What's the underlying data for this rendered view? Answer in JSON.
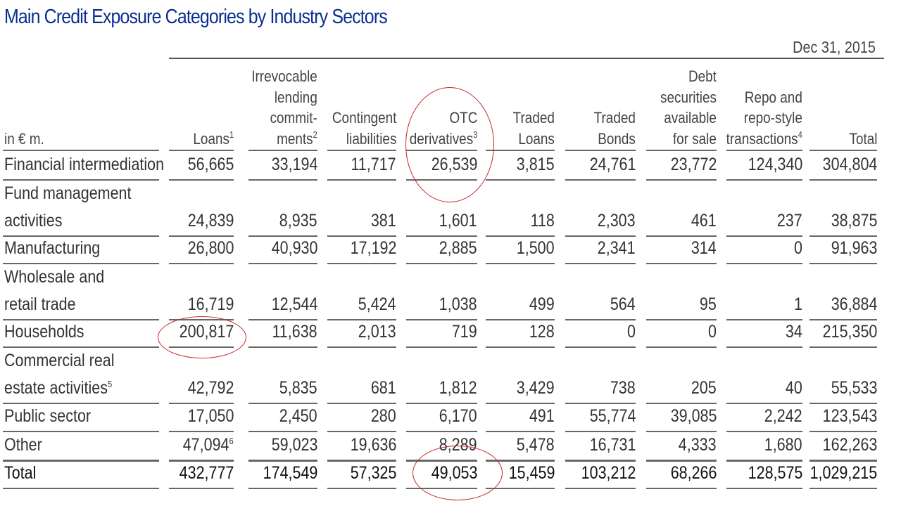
{
  "title": "Main Credit Exposure Categories by Industry Sectors",
  "date": "Dec 31, 2015",
  "unit_label": "in € m.",
  "columns": [
    {
      "lines": [
        "Loans"
      ],
      "note": "1"
    },
    {
      "lines": [
        "Irrevocable",
        "lending",
        "commit-",
        "ments"
      ],
      "note": "2"
    },
    {
      "lines": [
        "Contingent",
        "liabilities"
      ],
      "note": ""
    },
    {
      "lines": [
        "OTC",
        "derivatives"
      ],
      "note": "3"
    },
    {
      "lines": [
        "Traded",
        "Loans"
      ],
      "note": ""
    },
    {
      "lines": [
        "Traded",
        "Bonds"
      ],
      "note": ""
    },
    {
      "lines": [
        "Debt",
        "securities",
        "available",
        "for sale"
      ],
      "note": ""
    },
    {
      "lines": [
        "Repo and",
        "repo-style",
        "transactions"
      ],
      "note": "4"
    },
    {
      "lines": [
        "Total"
      ],
      "note": ""
    }
  ],
  "rows": [
    {
      "label": [
        "Financial intermediation"
      ],
      "note": "",
      "values": [
        "56,665",
        "33,194",
        "11,717",
        "26,539",
        "3,815",
        "24,761",
        "23,772",
        "124,340",
        "304,804"
      ],
      "value_notes": {}
    },
    {
      "label": [
        "Fund management",
        "activities"
      ],
      "note": "",
      "values": [
        "24,839",
        "8,935",
        "381",
        "1,601",
        "118",
        "2,303",
        "461",
        "237",
        "38,875"
      ],
      "value_notes": {}
    },
    {
      "label": [
        "Manufacturing"
      ],
      "note": "",
      "values": [
        "26,800",
        "40,930",
        "17,192",
        "2,885",
        "1,500",
        "2,341",
        "314",
        "0",
        "91,963"
      ],
      "value_notes": {}
    },
    {
      "label": [
        "Wholesale and",
        "retail trade"
      ],
      "note": "",
      "values": [
        "16,719",
        "12,544",
        "5,424",
        "1,038",
        "499",
        "564",
        "95",
        "1",
        "36,884"
      ],
      "value_notes": {}
    },
    {
      "label": [
        "Households"
      ],
      "note": "",
      "values": [
        "200,817",
        "11,638",
        "2,013",
        "719",
        "128",
        "0",
        "0",
        "34",
        "215,350"
      ],
      "value_notes": {}
    },
    {
      "label": [
        "Commercial real",
        "estate activities"
      ],
      "note": "5",
      "values": [
        "42,792",
        "5,835",
        "681",
        "1,812",
        "3,429",
        "738",
        "205",
        "40",
        "55,533"
      ],
      "value_notes": {}
    },
    {
      "label": [
        "Public sector"
      ],
      "note": "",
      "values": [
        "17,050",
        "2,450",
        "280",
        "6,170",
        "491",
        "55,774",
        "39,085",
        "2,242",
        "123,543"
      ],
      "value_notes": {}
    },
    {
      "label": [
        "Other"
      ],
      "note": "",
      "values": [
        "47,094",
        "59,023",
        "19,636",
        "8,289",
        "5,478",
        "16,731",
        "4,333",
        "1,680",
        "162,263"
      ],
      "value_notes": {
        "0": "6"
      }
    },
    {
      "label": [
        "Total"
      ],
      "note": "",
      "values": [
        "432,777",
        "174,549",
        "57,325",
        "49,053",
        "15,459",
        "103,212",
        "68,266",
        "128,575",
        "1,029,215"
      ],
      "value_notes": {}
    }
  ],
  "annotation_color": "#c8242a"
}
